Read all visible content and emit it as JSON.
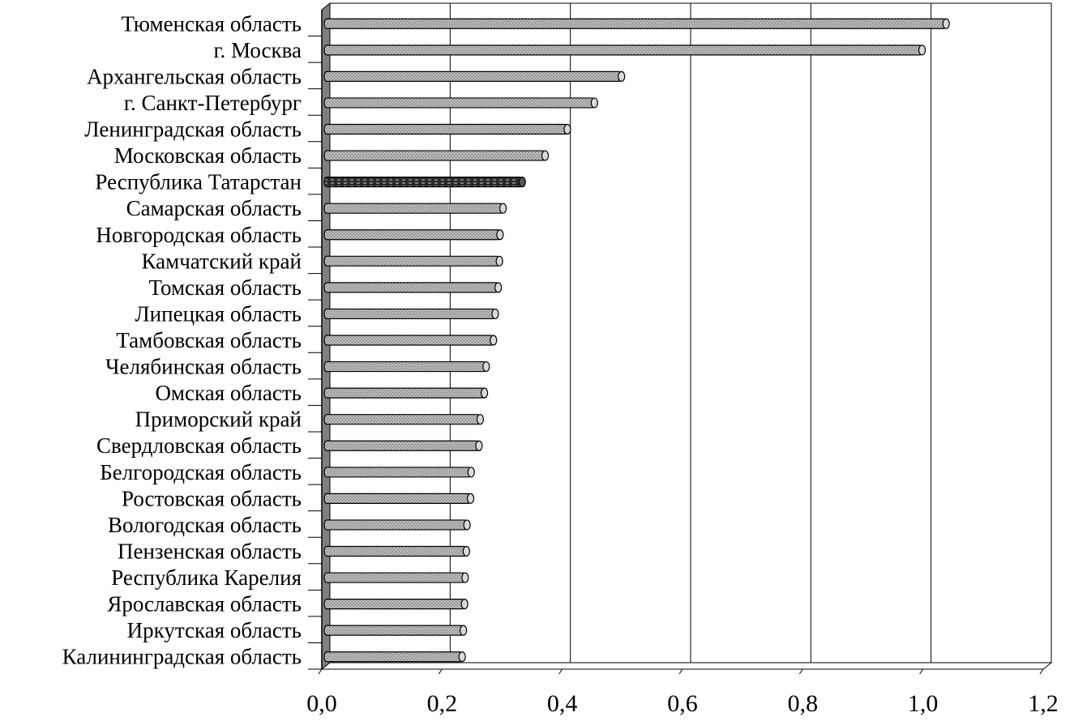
{
  "chart_data": {
    "type": "bar",
    "orientation": "horizontal",
    "title": "",
    "xlabel": "",
    "ylabel": "",
    "xlim": [
      0,
      1.2
    ],
    "x_ticks": [
      "0,0",
      "0,2",
      "0,4",
      "0,6",
      "0,8",
      "1,0",
      "1,2"
    ],
    "grid": "vertical",
    "legend": "none",
    "highlight_color": "#333333",
    "bar_color": "#a6a6a6",
    "highlight_category": "Республика Татарстан",
    "categories": [
      "Тюменская область",
      "г. Москва",
      "Архангельская область",
      "г. Санкт-Петербург",
      "Ленинградская область",
      "Московская область",
      "Республика Татарстан",
      "Самарская область",
      "Новгородская область",
      "Камчатский край",
      "Томская область",
      "Липецкая область",
      "Тамбовская область",
      "Челябинская область",
      "Омская область",
      "Приморский край",
      "Свердловская область",
      "Белгородская область",
      "Ростовская область",
      "Вологодская область",
      "Пензенская область",
      "Республика Карелия",
      "Ярославская область",
      "Иркутская область",
      "Калининградская область"
    ],
    "values": [
      1.025,
      0.985,
      0.485,
      0.44,
      0.395,
      0.358,
      0.32,
      0.288,
      0.283,
      0.282,
      0.28,
      0.275,
      0.272,
      0.26,
      0.257,
      0.25,
      0.248,
      0.235,
      0.234,
      0.228,
      0.227,
      0.225,
      0.224,
      0.222,
      0.22
    ]
  }
}
